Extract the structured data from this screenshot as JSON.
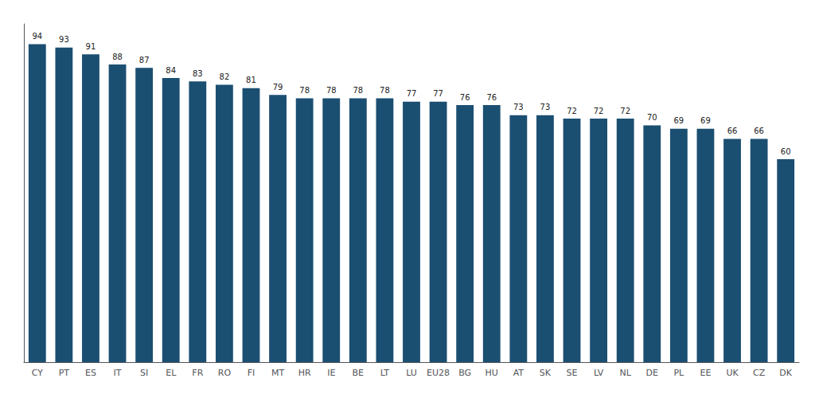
{
  "chart_data": {
    "type": "bar",
    "categories": [
      "CY",
      "PT",
      "ES",
      "IT",
      "SI",
      "EL",
      "FR",
      "RO",
      "FI",
      "MT",
      "HR",
      "IE",
      "BE",
      "LT",
      "LU",
      "EU28",
      "BG",
      "HU",
      "AT",
      "SK",
      "SE",
      "LV",
      "NL",
      "DE",
      "PL",
      "EE",
      "UK",
      "CZ",
      "DK"
    ],
    "values": [
      94,
      93,
      91,
      88,
      87,
      84,
      83,
      82,
      81,
      79,
      78,
      78,
      78,
      78,
      77,
      77,
      76,
      76,
      73,
      73,
      72,
      72,
      72,
      70,
      69,
      69,
      66,
      66,
      60
    ],
    "color": "#1b4f72",
    "ylim": [
      0,
      100
    ],
    "yticks": [],
    "grid": false,
    "tick_labels": "x",
    "data_labels": true
  }
}
